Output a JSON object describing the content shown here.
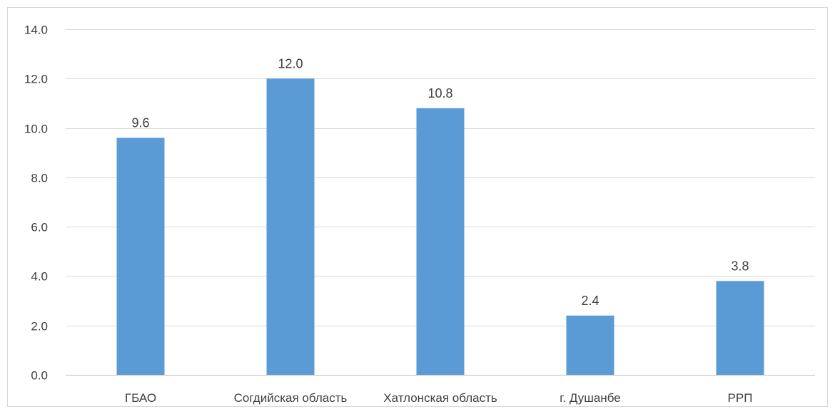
{
  "chart_data": {
    "type": "bar",
    "title": "",
    "xlabel": "",
    "ylabel": "",
    "categories": [
      "ГБАО",
      "Согдийская область",
      "Хатлонская область",
      "г. Душанбе",
      "РРП"
    ],
    "values": [
      9.6,
      12.0,
      10.8,
      2.4,
      3.8
    ],
    "data_labels": [
      "9.6",
      "12.0",
      "10.8",
      "2.4",
      "3.8"
    ],
    "ylim": [
      0,
      14
    ],
    "yticks": [
      "0.0",
      "2.0",
      "4.0",
      "6.0",
      "8.0",
      "10.0",
      "12.0",
      "14.0"
    ],
    "grid": true,
    "legend": "none",
    "bar_color": "#5b9bd5"
  }
}
